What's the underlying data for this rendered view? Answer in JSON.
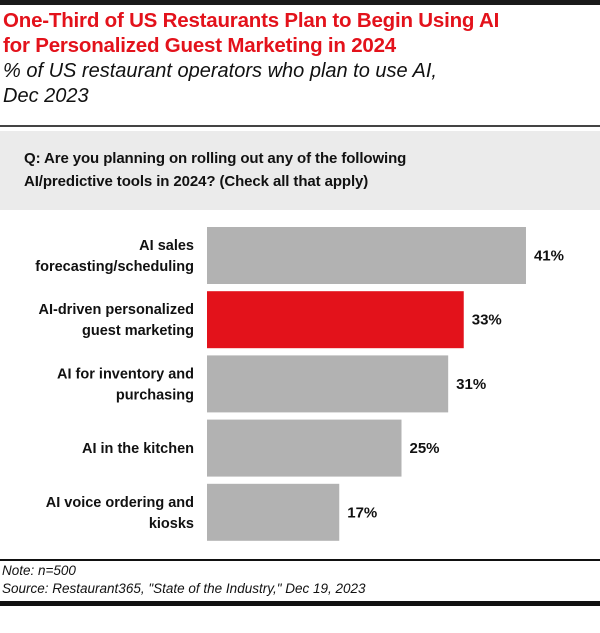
{
  "chart_data": {
    "type": "bar",
    "orientation": "horizontal",
    "title": "One-Third of US Restaurants Plan to Begin Using AI for Personalized Guest Marketing in 2024",
    "subtitle": "% of US restaurant operators who plan to use AI, Dec 2023",
    "question": "Q: Are you planning on rolling out any of the following AI/predictive tools in 2024? (Check all that apply)",
    "categories": [
      [
        "AI sales",
        "forecasting/scheduling"
      ],
      [
        "AI-driven personalized",
        "guest marketing"
      ],
      [
        "AI for inventory and",
        "purchasing"
      ],
      [
        "AI in the kitchen"
      ],
      [
        "AI voice ordering and",
        "kiosks"
      ]
    ],
    "values": [
      41,
      33,
      31,
      25,
      17
    ],
    "value_labels": [
      "41%",
      "33%",
      "31%",
      "25%",
      "17%"
    ],
    "highlight_index": 1,
    "xlabel": "",
    "ylabel": "",
    "xlim": [
      0,
      45
    ],
    "grid": false,
    "legend": "none",
    "colors": {
      "bar": "#b2b2b2",
      "highlight": "#e3121b",
      "title": "#e3121b"
    }
  },
  "header": {
    "title_line1": "One-Third of US Restaurants Plan to Begin Using AI",
    "title_line2": "for Personalized Guest Marketing in 2024",
    "subtitle_line1": "% of US restaurant operators who plan to use AI,",
    "subtitle_line2": "Dec 2023"
  },
  "question": {
    "line1": "Q: Are you planning on rolling out any of the following",
    "line2": "AI/predictive tools in 2024? (Check all that apply)"
  },
  "footer": {
    "note": "Note: n=500",
    "source": "Source: Restaurant365, \"State of the Industry,\" Dec 19, 2023"
  }
}
